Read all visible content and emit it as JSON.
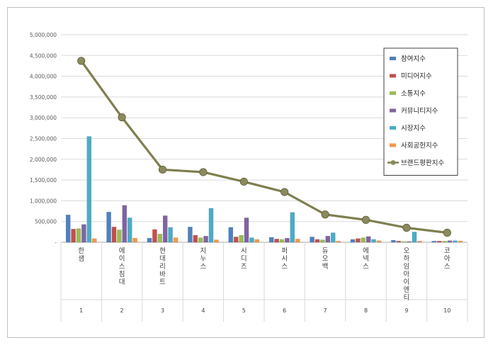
{
  "chart_data": {
    "type": "bar",
    "categories": [
      "한샘",
      "에이스침대",
      "현대리바트",
      "지누스",
      "시디즈",
      "퍼시스",
      "듀오백",
      "에넥스",
      "오하임아이엔티",
      "코아스"
    ],
    "ranks": [
      "1",
      "2",
      "3",
      "4",
      "5",
      "6",
      "7",
      "8",
      "9",
      "10"
    ],
    "ylim": [
      0,
      5000000
    ],
    "yticks": [
      "5,000,000",
      "4,500,000",
      "4,000,000",
      "3,500,000",
      "3,000,000",
      "2,500,000",
      "2,000,000",
      "1,500,000",
      "1,000,000",
      "500,000",
      "-"
    ],
    "ytick_values": [
      5000000,
      4500000,
      4000000,
      3500000,
      3000000,
      2500000,
      2000000,
      1500000,
      1000000,
      500000,
      0
    ],
    "grid": true,
    "legend_position": "right",
    "series": [
      {
        "name": "참여지수",
        "type": "bar",
        "color": "#4F81BD",
        "values": [
          660000,
          730000,
          100000,
          370000,
          360000,
          120000,
          130000,
          70000,
          50000,
          30000
        ]
      },
      {
        "name": "미디어지수",
        "type": "bar",
        "color": "#C0504D",
        "values": [
          320000,
          370000,
          310000,
          170000,
          130000,
          80000,
          70000,
          90000,
          30000,
          30000
        ]
      },
      {
        "name": "소통지수",
        "type": "bar",
        "color": "#9BBB59",
        "values": [
          330000,
          300000,
          200000,
          110000,
          170000,
          70000,
          60000,
          110000,
          20000,
          30000
        ]
      },
      {
        "name": "커뮤니티지수",
        "type": "bar",
        "color": "#8064A2",
        "values": [
          430000,
          890000,
          640000,
          150000,
          590000,
          100000,
          150000,
          140000,
          20000,
          40000
        ]
      },
      {
        "name": "시장지수",
        "type": "bar",
        "color": "#4BACC6",
        "values": [
          2550000,
          590000,
          360000,
          820000,
          110000,
          720000,
          230000,
          70000,
          250000,
          40000
        ]
      },
      {
        "name": "사회공헌지수",
        "type": "bar",
        "color": "#F79646",
        "values": [
          90000,
          100000,
          110000,
          60000,
          70000,
          80000,
          30000,
          40000,
          30000,
          30000
        ]
      },
      {
        "name": "브랜드평판지수",
        "type": "line",
        "color": "#7F7F4F",
        "values": [
          4370000,
          3010000,
          1750000,
          1690000,
          1460000,
          1210000,
          670000,
          540000,
          350000,
          230000
        ]
      }
    ]
  }
}
